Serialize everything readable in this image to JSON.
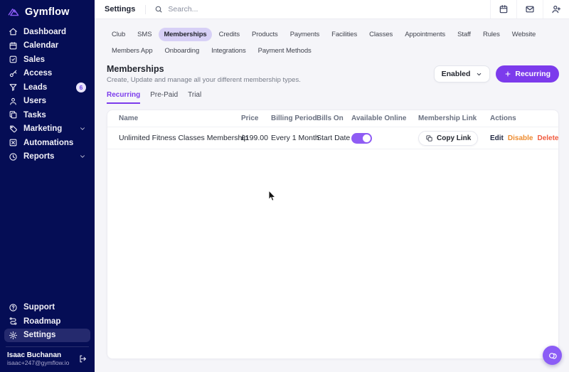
{
  "sidebar": {
    "logo_text": "Gymflow",
    "nav_items": [
      {
        "label": "Dashboard",
        "icon": "home"
      },
      {
        "label": "Calendar",
        "icon": "calendar"
      },
      {
        "label": "Sales",
        "icon": "sales"
      },
      {
        "label": "Access",
        "icon": "key"
      },
      {
        "label": "Leads",
        "icon": "funnel",
        "badge": "6"
      },
      {
        "label": "Users",
        "icon": "user"
      },
      {
        "label": "Tasks",
        "icon": "tasks"
      },
      {
        "label": "Marketing",
        "icon": "tag",
        "chevron": true
      },
      {
        "label": "Automations",
        "icon": "automations"
      },
      {
        "label": "Reports",
        "icon": "reports",
        "chevron": true
      }
    ],
    "footer_items": [
      {
        "label": "Support",
        "icon": "help"
      },
      {
        "label": "Roadmap",
        "icon": "roadmap"
      },
      {
        "label": "Settings",
        "icon": "gear",
        "active": true
      }
    ],
    "user": {
      "name": "Isaac Buchanan",
      "email": "isaac+247@gymflow.io"
    }
  },
  "topbar": {
    "title": "Settings",
    "search_placeholder": "Search...",
    "action_icons": [
      "calendar",
      "mail",
      "user-plus"
    ]
  },
  "settings_tabs": {
    "items": [
      "Club",
      "SMS",
      "Memberships",
      "Credits",
      "Products",
      "Payments",
      "Facilities",
      "Classes",
      "Appointments",
      "Staff",
      "Rules",
      "Website",
      "Members App",
      "Onboarding",
      "Integrations",
      "Payment Methods"
    ],
    "active": "Memberships"
  },
  "memberships": {
    "title": "Memberships",
    "subtitle": "Create, Update and manage all your different membership types.",
    "filter_value": "Enabled",
    "add_button_label": "Recurring",
    "subtabs": [
      "Recurring",
      "Pre-Paid",
      "Trial"
    ],
    "active_subtab": "Recurring",
    "table": {
      "columns": [
        "Name",
        "Price",
        "Billing Period",
        "Bills On",
        "Available Online",
        "Membership Link",
        "Actions"
      ],
      "rows": [
        {
          "name": "Unlimited Fitness Classes Membership",
          "price": "£199.00",
          "billing_period": "Every 1 Month",
          "bills_on": "Start Date",
          "available_online": true,
          "link_button_label": "Copy Link",
          "actions": [
            {
              "label": "Edit",
              "color": "#232a44"
            },
            {
              "label": "Disable",
              "color": "#ee8c2f"
            },
            {
              "label": "Delete",
              "color": "#f15b3f"
            }
          ]
        }
      ]
    }
  },
  "colors": {
    "accent_purple": "#7c3bec",
    "sidebar_bg": "#050d55",
    "active_tab_bg": "#d7d0f6",
    "toggle_on": "#8f5cf4",
    "disable_orange": "#ee8c2f",
    "delete_red": "#f15b3f"
  }
}
